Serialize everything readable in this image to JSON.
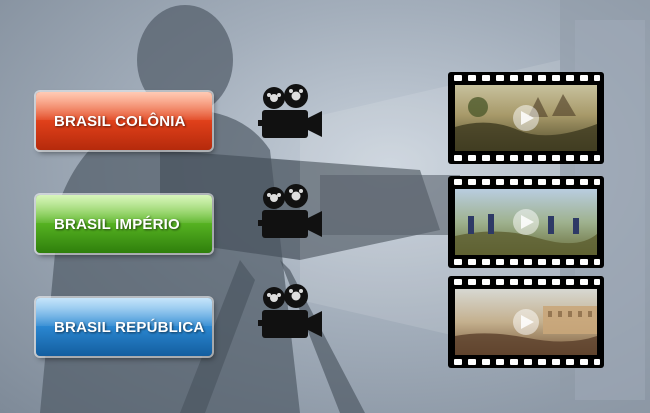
{
  "menu": {
    "items": [
      {
        "label": "BRASIL COLÔNIA"
      },
      {
        "label": "BRASIL IMPÉRIO"
      },
      {
        "label": "BRASIL REPÚBLICA"
      }
    ]
  },
  "icons": {
    "camera": "film-camera-icon",
    "play": "play-icon"
  },
  "colors": {
    "colonia": "#e0401a",
    "imperio": "#55b121",
    "republica": "#2a86d0"
  }
}
